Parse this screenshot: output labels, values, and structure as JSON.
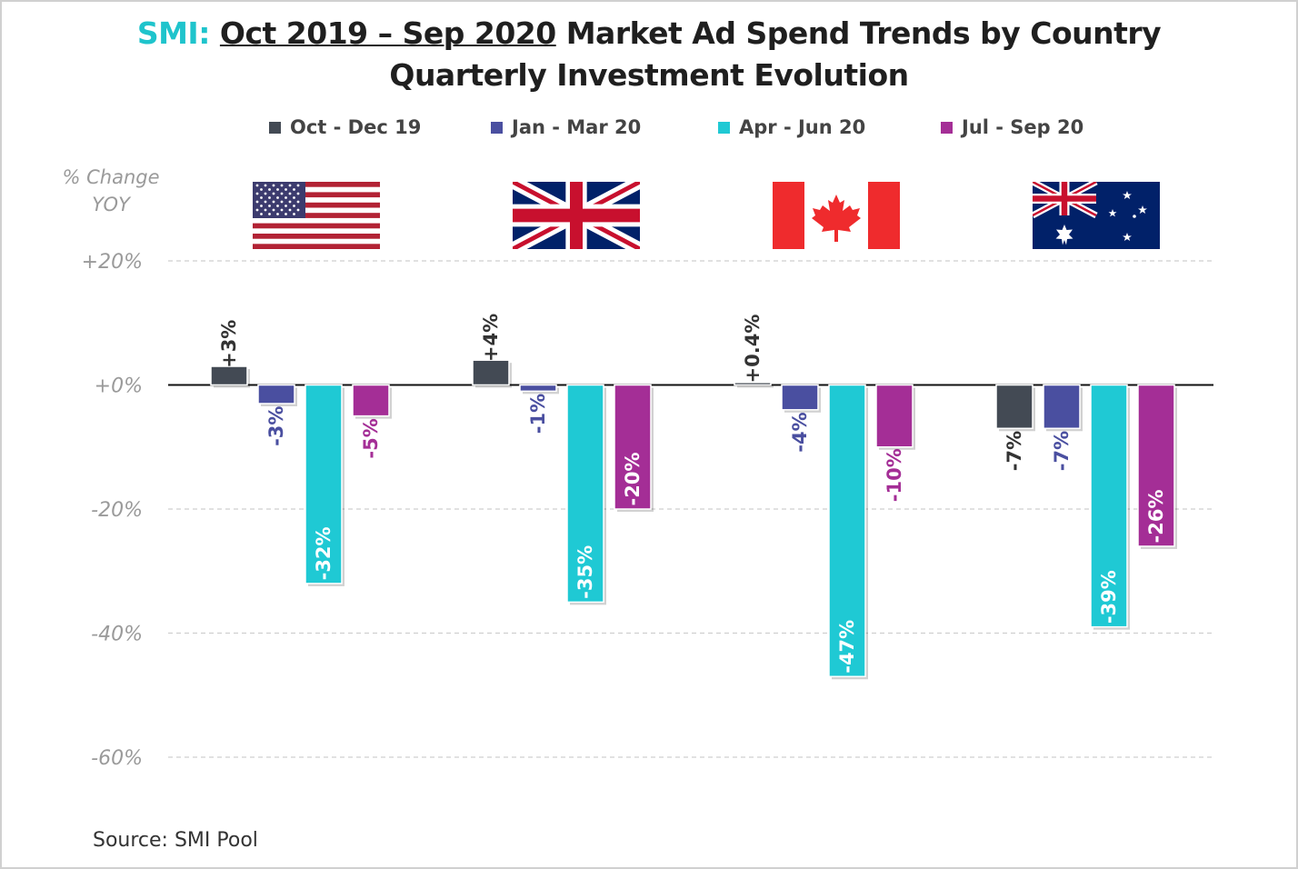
{
  "title": {
    "brand": "SMI:",
    "range": "Oct 2019 – Sep 2020",
    "rest": " Market Ad Spend Trends by Country",
    "line2": "Quarterly Investment Evolution"
  },
  "source": "Source: SMI Pool",
  "colors": {
    "q1": "#434a54",
    "q2": "#4a4fa0",
    "q3": "#1fc9d4",
    "q4": "#a42e96"
  },
  "chart_data": {
    "type": "bar",
    "title": "Oct 2019 – Sep 2020 Market Ad Spend Trends by Country — Quarterly Investment Evolution",
    "ylabel": "% Change YOY",
    "ylim": [
      -60,
      20
    ],
    "yticks": [
      20,
      0,
      -20,
      -40,
      -60
    ],
    "ytick_labels": [
      "+20%",
      "+0%",
      "-20%",
      "-40%",
      "-60%"
    ],
    "grid": true,
    "legend_position": "top",
    "categories": [
      "USA",
      "UK",
      "Canada",
      "Australia"
    ],
    "category_icons": [
      "us-flag",
      "uk-flag",
      "canada-flag",
      "australia-flag"
    ],
    "series": [
      {
        "name": "Oct - Dec 19",
        "color": "#434a54",
        "values": [
          3,
          4,
          0.4,
          -7
        ],
        "labels": [
          "+3%",
          "+4%",
          "+0.4%",
          "-7%"
        ]
      },
      {
        "name": "Jan - Mar 20",
        "color": "#4a4fa0",
        "values": [
          -3,
          -1,
          -4,
          -7
        ],
        "labels": [
          "-3%",
          "-1%",
          "-4%",
          "-7%"
        ]
      },
      {
        "name": "Apr - Jun 20",
        "color": "#1fc9d4",
        "values": [
          -32,
          -35,
          -47,
          -39
        ],
        "labels": [
          "-32%",
          "-35%",
          "-47%",
          "-39%"
        ]
      },
      {
        "name": "Jul - Sep 20",
        "color": "#a42e96",
        "values": [
          -5,
          -20,
          -10,
          -26
        ],
        "labels": [
          "-5%",
          "-20%",
          "-10%",
          "-26%"
        ]
      }
    ]
  }
}
